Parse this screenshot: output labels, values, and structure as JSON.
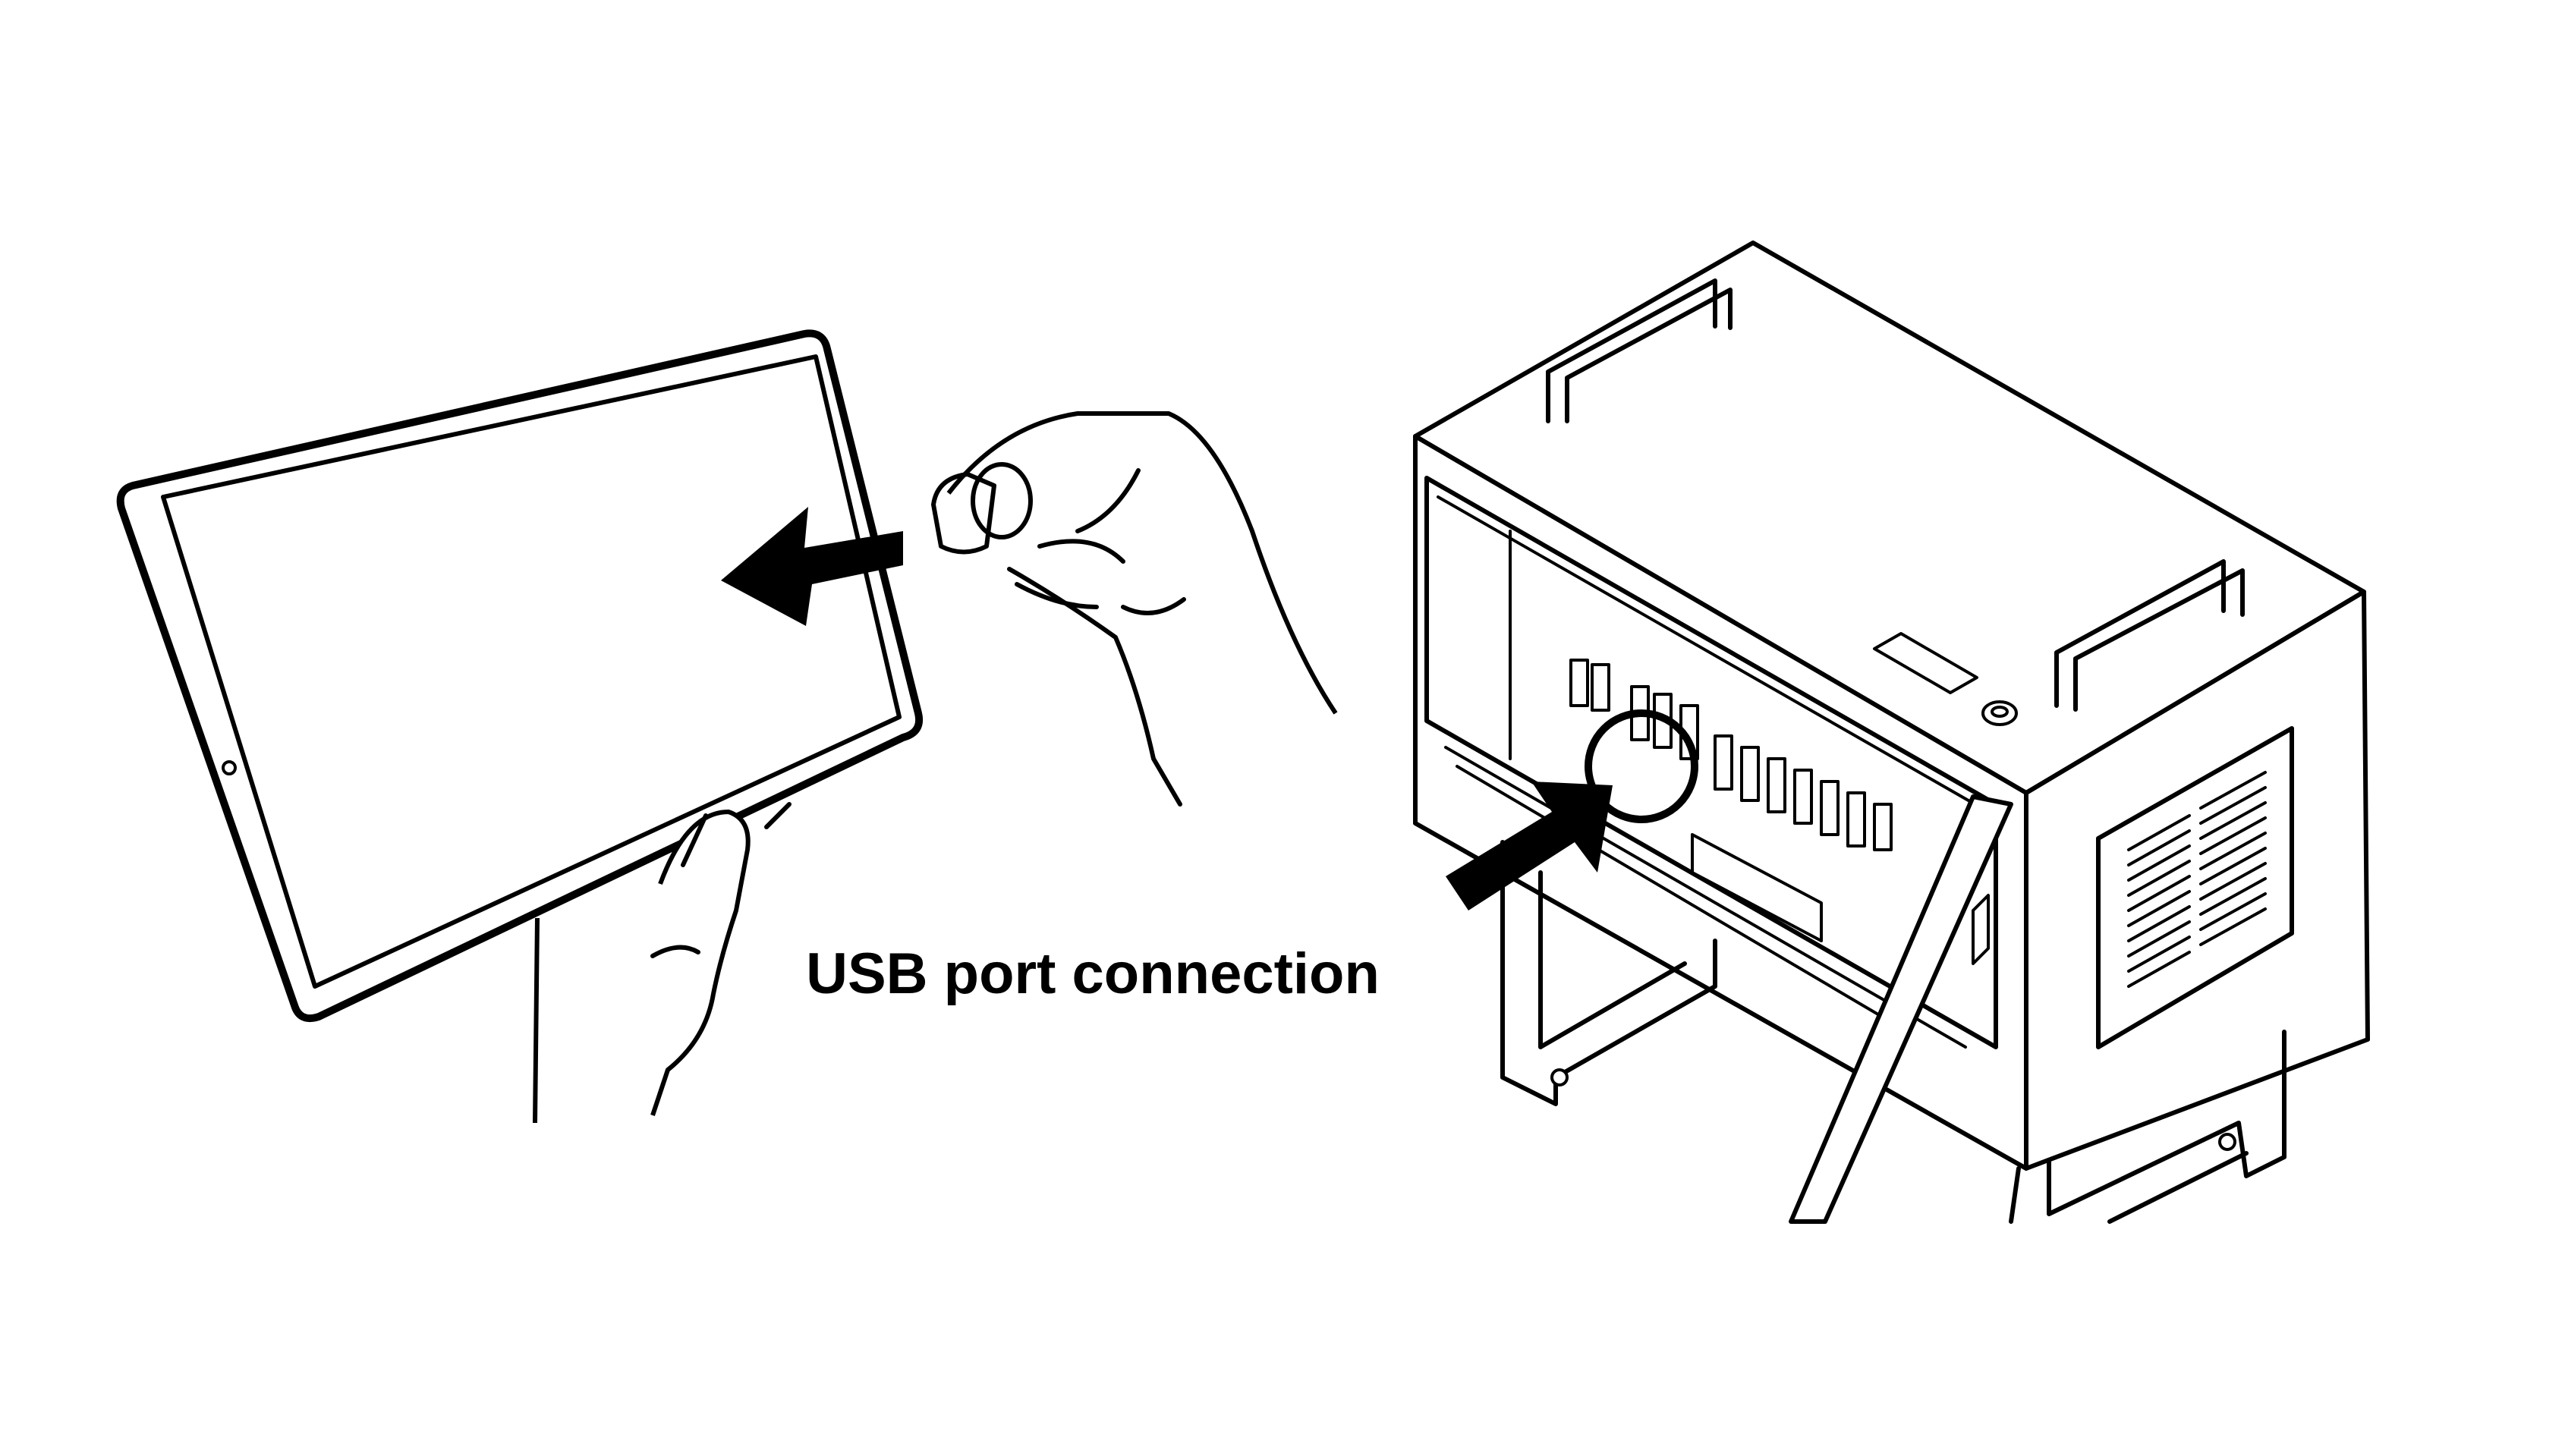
{
  "caption": {
    "text": "USB port connection"
  },
  "colors": {
    "ink": "#000000",
    "background": "#ffffff"
  },
  "icons": {
    "left_arrow": "arrow-left-icon",
    "right_arrow": "arrow-up-right-icon",
    "highlight": "circle-highlight-icon"
  }
}
